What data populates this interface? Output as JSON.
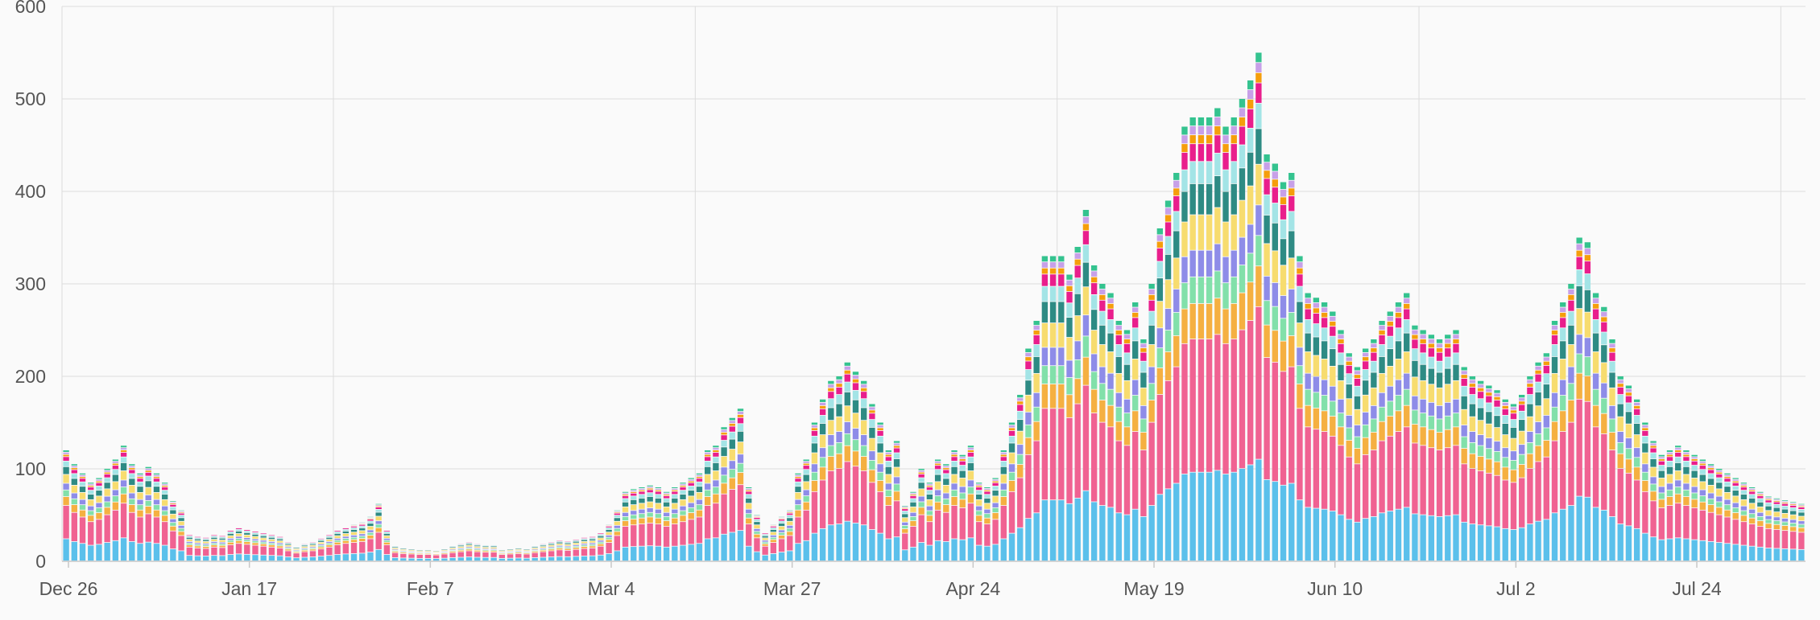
{
  "chart_data": {
    "type": "bar",
    "stacked": true,
    "grid": true,
    "legend": "none",
    "ylim": [
      0,
      600
    ],
    "y_ticks": [
      "0",
      "100",
      "200",
      "300",
      "400",
      "500",
      "600"
    ],
    "x_tick_labels": [
      "Dec 26",
      "Jan 17",
      "Feb 7",
      "Mar 4",
      "Mar 27",
      "Apr 24",
      "May 19",
      "Jun 10",
      "Jul 2",
      "Jul 24"
    ],
    "x_tick_positions": [
      0,
      22,
      44,
      66,
      88,
      110,
      132,
      154,
      176,
      198
    ],
    "x_grid_positions": [
      0,
      33,
      77,
      121,
      165,
      209
    ],
    "totals": [
      120,
      105,
      95,
      85,
      90,
      100,
      110,
      125,
      105,
      95,
      102,
      95,
      85,
      65,
      55,
      30,
      28,
      27,
      30,
      29,
      35,
      38,
      36,
      34,
      32,
      30,
      28,
      22,
      17,
      20,
      22,
      26,
      30,
      35,
      38,
      40,
      42,
      48,
      62,
      35,
      18,
      16,
      15,
      14,
      14,
      13,
      15,
      18,
      20,
      22,
      20,
      19,
      19,
      14,
      15,
      16,
      15,
      18,
      20,
      22,
      24,
      23,
      25,
      27,
      28,
      32,
      40,
      55,
      75,
      78,
      80,
      82,
      80,
      75,
      80,
      85,
      90,
      95,
      120,
      125,
      145,
      155,
      165,
      80,
      50,
      32,
      40,
      48,
      55,
      95,
      110,
      150,
      175,
      195,
      200,
      215,
      205,
      195,
      170,
      150,
      120,
      130,
      60,
      75,
      100,
      85,
      110,
      105,
      120,
      115,
      125,
      85,
      80,
      90,
      120,
      150,
      180,
      230,
      260,
      330,
      330,
      330,
      310,
      340,
      380,
      320,
      300,
      290,
      260,
      250,
      280,
      240,
      300,
      360,
      390,
      420,
      470,
      480,
      480,
      480,
      490,
      470,
      480,
      500,
      520,
      550,
      440,
      430,
      410,
      420,
      330,
      290,
      285,
      280,
      270,
      250,
      225,
      210,
      230,
      240,
      260,
      270,
      280,
      290,
      255,
      250,
      245,
      240,
      245,
      250,
      210,
      200,
      195,
      190,
      185,
      175,
      170,
      180,
      200,
      215,
      225,
      260,
      280,
      300,
      350,
      345,
      290,
      275,
      240,
      200,
      190,
      175,
      150,
      130,
      115,
      120,
      125,
      120,
      115,
      110,
      105,
      100,
      95,
      90,
      85,
      80,
      75,
      70,
      68,
      66,
      64,
      62
    ],
    "series_colors": [
      "#5bc0eb",
      "#f06292",
      "#f5b041",
      "#82e0aa",
      "#8e8ce8",
      "#f7dc6f",
      "#2e8b84",
      "#a3e4e6",
      "#e91e8c",
      "#f59e0b",
      "#c7a0e8",
      "#34c38f"
    ],
    "series_shares": [
      0.2,
      0.3,
      0.08,
      0.06,
      0.06,
      0.08,
      0.07,
      0.05,
      0.04,
      0.02,
      0.02,
      0.02
    ]
  }
}
